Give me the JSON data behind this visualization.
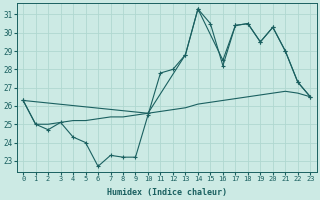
{
  "xlabel": "Humidex (Indice chaleur)",
  "bg_color": "#cceae4",
  "grid_color": "#b0d8d0",
  "line_color": "#1a6060",
  "xlim": [
    -0.5,
    23.5
  ],
  "ylim": [
    22.4,
    31.6
  ],
  "yticks": [
    23,
    24,
    25,
    26,
    27,
    28,
    29,
    30,
    31
  ],
  "xticks": [
    0,
    1,
    2,
    3,
    4,
    5,
    6,
    7,
    8,
    9,
    10,
    11,
    12,
    13,
    14,
    15,
    16,
    17,
    18,
    19,
    20,
    21,
    22,
    23
  ],
  "line1_x": [
    0,
    1,
    2,
    3,
    4,
    5,
    6,
    7,
    8,
    9,
    10,
    11,
    12,
    13,
    14,
    15,
    16,
    17,
    18,
    19,
    20,
    21,
    22,
    23
  ],
  "line1_y": [
    26.3,
    25.0,
    24.7,
    25.1,
    24.3,
    24.0,
    22.7,
    23.3,
    23.2,
    23.2,
    25.5,
    27.8,
    28.0,
    28.8,
    31.3,
    30.5,
    28.2,
    30.4,
    30.5,
    29.5,
    30.3,
    29.0,
    27.3,
    26.5
  ],
  "line2_x": [
    0,
    1,
    2,
    3,
    4,
    5,
    6,
    7,
    8,
    9,
    10,
    11,
    12,
    13,
    14,
    15,
    16,
    17,
    18,
    19,
    20,
    21,
    22,
    23
  ],
  "line2_y": [
    26.3,
    25.0,
    25.0,
    25.1,
    25.2,
    25.2,
    25.3,
    25.4,
    25.4,
    25.5,
    25.6,
    25.7,
    25.8,
    25.9,
    26.1,
    26.2,
    26.3,
    26.4,
    26.5,
    26.6,
    26.7,
    26.8,
    26.7,
    26.5
  ],
  "line3_x": [
    0,
    10,
    13,
    14,
    16,
    17,
    18,
    19,
    20,
    21,
    22,
    23
  ],
  "line3_y": [
    26.3,
    25.6,
    28.8,
    31.3,
    28.5,
    30.4,
    30.5,
    29.5,
    30.3,
    29.0,
    27.3,
    26.5
  ]
}
